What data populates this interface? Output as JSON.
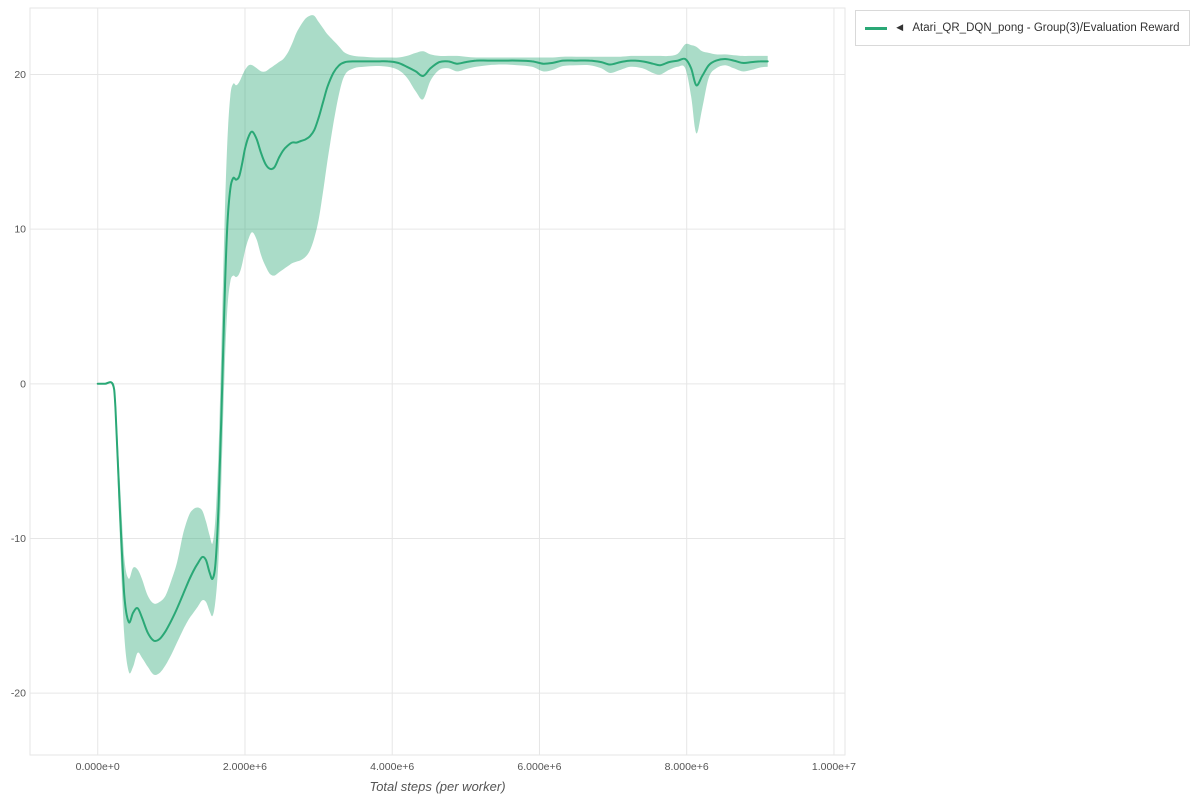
{
  "legend": {
    "marker": "◄",
    "label": "Atari_QR_DQN_pong - Group(3)/Evaluation Reward",
    "line_color": "#2aa876"
  },
  "colors": {
    "background": "#ffffff",
    "grid": "#e6e6e6",
    "tick": "#545454",
    "axis_title": "#555555",
    "legend_border": "#d9d9d9",
    "line": "#2aa876"
  },
  "chart_data": {
    "type": "line",
    "title": "",
    "xlabel": "Total steps (per worker)",
    "ylabel": "",
    "grid": true,
    "legend_position": "top-right",
    "x_scale": 1000000,
    "xlim": [
      -920000,
      10150000
    ],
    "ylim": [
      -24,
      24.3
    ],
    "xticks": [
      {
        "v": 0,
        "label": "0.000e+0"
      },
      {
        "v": 2000000,
        "label": "2.000e+6"
      },
      {
        "v": 4000000,
        "label": "4.000e+6"
      },
      {
        "v": 6000000,
        "label": "6.000e+6"
      },
      {
        "v": 8000000,
        "label": "8.000e+6"
      },
      {
        "v": 10000000,
        "label": "1.000e+7"
      }
    ],
    "yticks": [
      {
        "v": -20,
        "label": "-20"
      },
      {
        "v": -10,
        "label": "-10"
      },
      {
        "v": 0,
        "label": "0"
      },
      {
        "v": 10,
        "label": "10"
      },
      {
        "v": 20,
        "label": "20"
      }
    ],
    "series": [
      {
        "name": "Atari_QR_DQN_pong - Group(3)/Evaluation Reward",
        "color": "#2aa876",
        "band_opacity": 0.4,
        "points_format": [
          "x_in_millions_of_steps",
          "mean",
          "band_lower",
          "band_upper"
        ],
        "points": [
          [
            0.0,
            0.0,
            0.0,
            0.0
          ],
          [
            0.1,
            0.0,
            0.0,
            0.0
          ],
          [
            0.2,
            0.0,
            -0.1,
            0.1
          ],
          [
            0.24,
            -1.5,
            -2.3,
            -0.8
          ],
          [
            0.3,
            -8.0,
            -9.8,
            -6.2
          ],
          [
            0.36,
            -13.6,
            -16.2,
            -11.2
          ],
          [
            0.42,
            -15.4,
            -18.6,
            -12.6
          ],
          [
            0.48,
            -14.8,
            -18.3,
            -11.9
          ],
          [
            0.54,
            -14.5,
            -17.4,
            -12.0
          ],
          [
            0.6,
            -15.1,
            -17.7,
            -12.6
          ],
          [
            0.68,
            -16.1,
            -18.3,
            -13.7
          ],
          [
            0.76,
            -16.6,
            -18.8,
            -14.2
          ],
          [
            0.84,
            -16.5,
            -18.7,
            -14.1
          ],
          [
            0.92,
            -16.0,
            -18.2,
            -13.7
          ],
          [
            1.0,
            -15.3,
            -17.5,
            -12.7
          ],
          [
            1.08,
            -14.5,
            -16.7,
            -11.5
          ],
          [
            1.16,
            -13.6,
            -15.9,
            -9.7
          ],
          [
            1.24,
            -12.7,
            -15.2,
            -8.5
          ],
          [
            1.3,
            -12.1,
            -14.8,
            -8.1
          ],
          [
            1.36,
            -11.6,
            -14.4,
            -8.0
          ],
          [
            1.42,
            -11.2,
            -14.0,
            -8.2
          ],
          [
            1.47,
            -11.4,
            -14.1,
            -8.9
          ],
          [
            1.52,
            -12.2,
            -14.7,
            -9.8
          ],
          [
            1.56,
            -12.6,
            -15.0,
            -10.3
          ],
          [
            1.6,
            -11.6,
            -14.0,
            -8.6
          ],
          [
            1.64,
            -8.0,
            -11.4,
            -4.4
          ],
          [
            1.68,
            -2.0,
            -6.2,
            2.4
          ],
          [
            1.72,
            5.0,
            0.4,
            10.0
          ],
          [
            1.76,
            10.2,
            4.8,
            15.6
          ],
          [
            1.8,
            12.6,
            6.6,
            18.6
          ],
          [
            1.84,
            13.3,
            7.0,
            19.4
          ],
          [
            1.88,
            13.2,
            6.9,
            19.3
          ],
          [
            1.92,
            13.4,
            7.1,
            19.5
          ],
          [
            1.96,
            14.2,
            7.7,
            19.9
          ],
          [
            2.0,
            15.2,
            8.6,
            20.3
          ],
          [
            2.05,
            16.0,
            9.4,
            20.6
          ],
          [
            2.1,
            16.3,
            9.8,
            20.6
          ],
          [
            2.16,
            15.8,
            9.3,
            20.4
          ],
          [
            2.22,
            14.9,
            8.3,
            20.2
          ],
          [
            2.28,
            14.2,
            7.6,
            20.2
          ],
          [
            2.34,
            13.9,
            7.1,
            20.4
          ],
          [
            2.4,
            14.0,
            7.0,
            20.6
          ],
          [
            2.46,
            14.6,
            7.2,
            20.8
          ],
          [
            2.52,
            15.1,
            7.4,
            21.0
          ],
          [
            2.58,
            15.4,
            7.6,
            21.4
          ],
          [
            2.64,
            15.6,
            7.8,
            22.0
          ],
          [
            2.7,
            15.6,
            7.9,
            22.7
          ],
          [
            2.76,
            15.7,
            8.0,
            23.2
          ],
          [
            2.82,
            15.8,
            8.2,
            23.6
          ],
          [
            2.88,
            16.0,
            8.6,
            23.8
          ],
          [
            2.94,
            16.4,
            9.4,
            23.8
          ],
          [
            3.0,
            17.2,
            10.6,
            23.4
          ],
          [
            3.06,
            18.2,
            12.4,
            23.0
          ],
          [
            3.12,
            19.2,
            14.4,
            22.6
          ],
          [
            3.2,
            20.1,
            16.8,
            22.2
          ],
          [
            3.28,
            20.6,
            18.8,
            21.8
          ],
          [
            3.36,
            20.8,
            20.0,
            21.4
          ],
          [
            3.48,
            20.85,
            20.4,
            21.2
          ],
          [
            3.62,
            20.85,
            20.5,
            21.15
          ],
          [
            3.78,
            20.85,
            20.55,
            21.1
          ],
          [
            3.94,
            20.85,
            20.5,
            21.1
          ],
          [
            4.08,
            20.75,
            20.3,
            21.1
          ],
          [
            4.2,
            20.5,
            19.8,
            21.2
          ],
          [
            4.32,
            20.2,
            18.9,
            21.4
          ],
          [
            4.42,
            19.9,
            18.4,
            21.5
          ],
          [
            4.52,
            20.4,
            19.6,
            21.3
          ],
          [
            4.64,
            20.8,
            20.3,
            21.2
          ],
          [
            4.76,
            20.85,
            20.4,
            21.2
          ],
          [
            4.88,
            20.7,
            20.2,
            21.2
          ],
          [
            5.0,
            20.8,
            20.35,
            21.15
          ],
          [
            5.14,
            20.9,
            20.5,
            21.1
          ],
          [
            5.3,
            20.9,
            20.6,
            21.1
          ],
          [
            5.5,
            20.9,
            20.65,
            21.1
          ],
          [
            5.7,
            20.9,
            20.6,
            21.1
          ],
          [
            5.9,
            20.85,
            20.5,
            21.1
          ],
          [
            6.05,
            20.7,
            20.2,
            21.1
          ],
          [
            6.18,
            20.75,
            20.3,
            21.1
          ],
          [
            6.32,
            20.9,
            20.55,
            21.15
          ],
          [
            6.5,
            20.9,
            20.6,
            21.15
          ],
          [
            6.68,
            20.9,
            20.6,
            21.15
          ],
          [
            6.84,
            20.8,
            20.4,
            21.15
          ],
          [
            6.96,
            20.65,
            20.1,
            21.15
          ],
          [
            7.1,
            20.8,
            20.3,
            21.15
          ],
          [
            7.24,
            20.9,
            20.5,
            21.2
          ],
          [
            7.4,
            20.85,
            20.4,
            21.2
          ],
          [
            7.54,
            20.7,
            20.1,
            21.2
          ],
          [
            7.64,
            20.6,
            20.0,
            21.2
          ],
          [
            7.76,
            20.8,
            20.3,
            21.2
          ],
          [
            7.88,
            20.9,
            20.5,
            21.35
          ],
          [
            7.98,
            21.0,
            20.4,
            21.95
          ],
          [
            8.06,
            20.4,
            18.6,
            21.9
          ],
          [
            8.13,
            19.3,
            16.2,
            21.8
          ],
          [
            8.21,
            19.9,
            17.8,
            21.5
          ],
          [
            8.3,
            20.6,
            19.8,
            21.4
          ],
          [
            8.4,
            20.9,
            20.4,
            21.3
          ],
          [
            8.52,
            21.0,
            20.6,
            21.3
          ],
          [
            8.64,
            20.9,
            20.4,
            21.25
          ],
          [
            8.76,
            20.75,
            20.2,
            21.2
          ],
          [
            8.88,
            20.8,
            20.3,
            21.2
          ],
          [
            9.0,
            20.85,
            20.45,
            21.2
          ],
          [
            9.1,
            20.85,
            20.5,
            21.2
          ]
        ]
      }
    ]
  }
}
